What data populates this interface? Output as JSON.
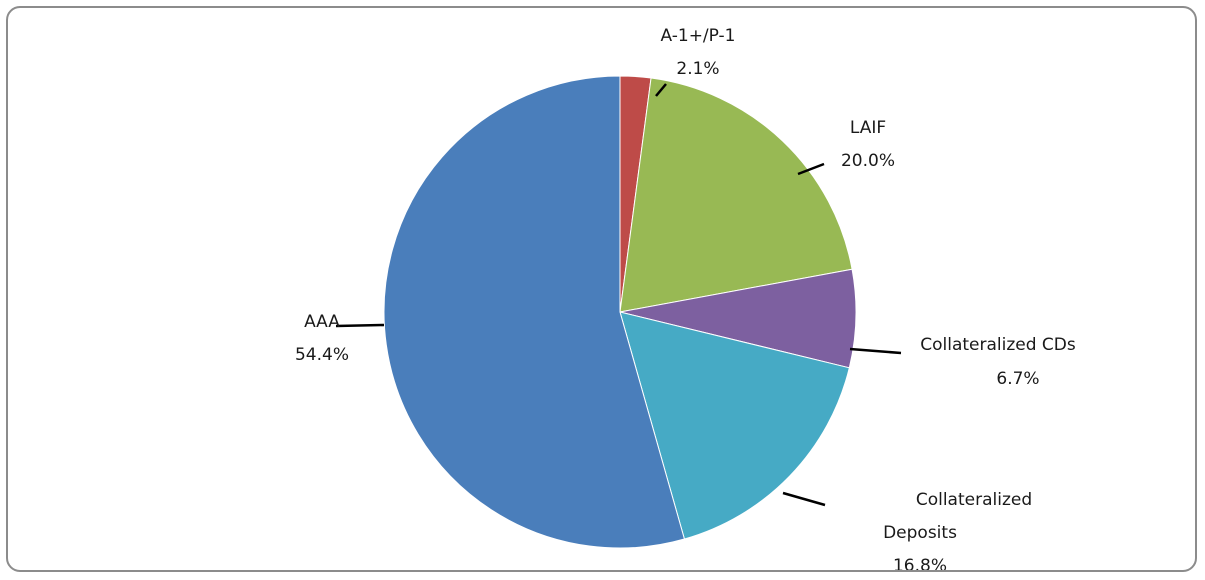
{
  "chart_data": {
    "type": "pie",
    "title": "",
    "series": [
      {
        "values": [
          2.1,
          20.0,
          6.7,
          16.8,
          54.4
        ],
        "categories": [
          "A-1+/P-1",
          "LAIF",
          "Collateralized CDs",
          "Collateralized Deposits",
          "AAA"
        ]
      }
    ],
    "slices": [
      {
        "name": "A-1+/P-1",
        "value": 2.1,
        "percent_label": "2.1%",
        "label_lines": [
          "A-1+/P-1"
        ],
        "color": "#be4b48"
      },
      {
        "name": "LAIF",
        "value": 20.0,
        "percent_label": "20.0%",
        "label_lines": [
          "LAIF"
        ],
        "color": "#98b954"
      },
      {
        "name": "Collateralized CDs",
        "value": 6.7,
        "percent_label": "6.7%",
        "label_lines": [
          "Collateralized CDs"
        ],
        "color": "#7d60a0"
      },
      {
        "name": "Collateralized Deposits",
        "value": 16.8,
        "percent_label": "16.8%",
        "label_lines": [
          "Collateralized",
          "Deposits"
        ],
        "color": "#46aac5"
      },
      {
        "name": "AAA",
        "value": 54.4,
        "percent_label": "54.4%",
        "label_lines": [
          "AAA"
        ],
        "color": "#4a7ebb"
      }
    ],
    "start_angle_deg": 0,
    "direction": "clockwise",
    "legend": "none",
    "data_labels": "outside-with-leader-lines"
  }
}
